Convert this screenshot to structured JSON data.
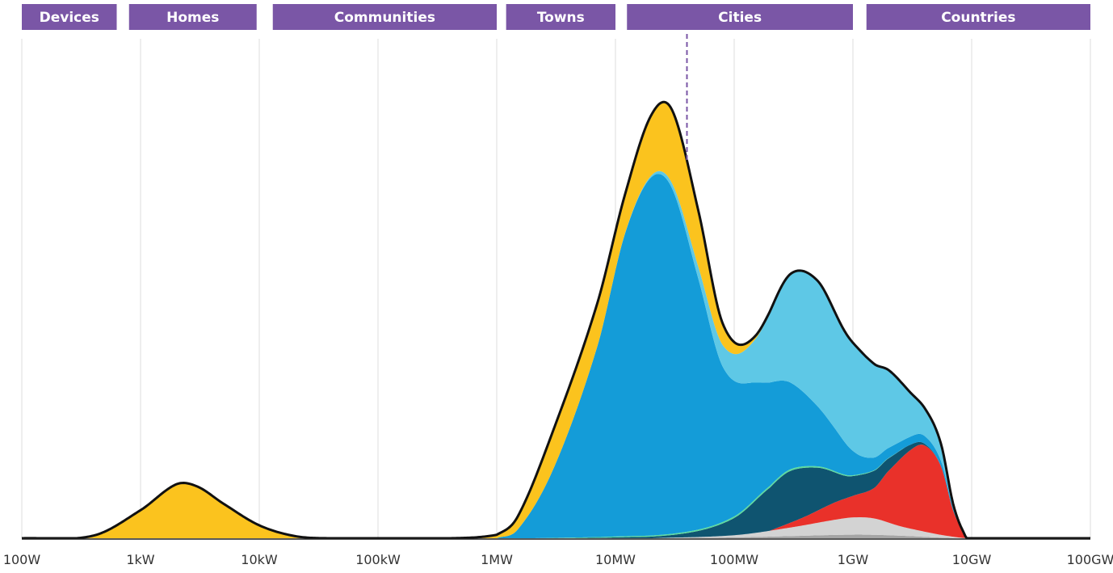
{
  "chart_data": {
    "type": "area",
    "x_scale": "log",
    "x_unit": "W",
    "x_ticks": [
      {
        "value": 100,
        "label": "100W"
      },
      {
        "value": 1000,
        "label": "1kW"
      },
      {
        "value": 10000,
        "label": "10kW"
      },
      {
        "value": 100000,
        "label": "100kW"
      },
      {
        "value": 1000000,
        "label": "1MW"
      },
      {
        "value": 10000000,
        "label": "10MW"
      },
      {
        "value": 100000000,
        "label": "100MW"
      },
      {
        "value": 1000000000,
        "label": "1GW"
      },
      {
        "value": 10000000000,
        "label": "10GW"
      },
      {
        "value": 100000000000,
        "label": "100GW"
      }
    ],
    "xlim": [
      100,
      100000000000
    ],
    "ylim": [
      0,
      1
    ],
    "grid": "vertical",
    "y_axis_shown": false,
    "categories": [
      {
        "label": "Devices",
        "from": 100,
        "to": 630
      },
      {
        "label": "Homes",
        "from": 800,
        "to": 9500
      },
      {
        "label": "Communities",
        "from": 13000,
        "to": 1000000
      },
      {
        "label": "Towns",
        "from": 1200000,
        "to": 10000000
      },
      {
        "label": "Cities",
        "from": 12500000,
        "to": 1000000000
      },
      {
        "label": "Countries",
        "from": 1300000000,
        "to": 100000000000
      }
    ],
    "marker_line": {
      "x": 40000000,
      "style": "dashed",
      "color": "#7a56a6"
    },
    "outline_color": "#111111",
    "category_band_color": "#7a56a6",
    "series": [
      {
        "color": "#a5a5a5",
        "points": [
          [
            20000000,
            0
          ],
          [
            100000000,
            0.002
          ],
          [
            300000000,
            0.005
          ],
          [
            800000000,
            0.008
          ],
          [
            1500000000,
            0.008
          ],
          [
            3000000000,
            0.005
          ],
          [
            5000000000,
            0.002
          ],
          [
            8000000000,
            0
          ]
        ]
      },
      {
        "color": "#d3d3d3",
        "points": [
          [
            20000000,
            0
          ],
          [
            100000000,
            0.005
          ],
          [
            300000000,
            0.02
          ],
          [
            700000000,
            0.035
          ],
          [
            1000000000,
            0.04
          ],
          [
            1500000000,
            0.038
          ],
          [
            2500000000,
            0.022
          ],
          [
            4000000000,
            0.012
          ],
          [
            6000000000,
            0.005
          ],
          [
            9000000000,
            0
          ]
        ]
      },
      {
        "color": "#e9312a",
        "points": [
          [
            200000000,
            0
          ],
          [
            400000000,
            0.02
          ],
          [
            700000000,
            0.04
          ],
          [
            1000000000,
            0.05
          ],
          [
            1500000000,
            0.07
          ],
          [
            2000000000,
            0.12
          ],
          [
            3000000000,
            0.18
          ],
          [
            4000000000,
            0.2
          ],
          [
            5500000000,
            0.16
          ],
          [
            7000000000,
            0.06
          ],
          [
            9000000000,
            0
          ]
        ]
      },
      {
        "color": "#0f5470",
        "points": [
          [
            2000000,
            0
          ],
          [
            10000000,
            0.002
          ],
          [
            40000000,
            0.01
          ],
          [
            100000000,
            0.04
          ],
          [
            200000000,
            0.1
          ],
          [
            300000000,
            0.12
          ],
          [
            500000000,
            0.1
          ],
          [
            900000000,
            0.05
          ],
          [
            1500000000,
            0.04
          ],
          [
            2500000000,
            0.02
          ],
          [
            4000000000,
            0.004
          ],
          [
            5500000000,
            0
          ]
        ]
      },
      {
        "color": "#5bdc9c",
        "points": [
          [
            2000000,
            0
          ],
          [
            10000000,
            0.002
          ],
          [
            50000000,
            0.003
          ],
          [
            200000000,
            0.004
          ],
          [
            600000000,
            0.003
          ],
          [
            1000000000,
            0.002
          ],
          [
            3000000000,
            0
          ]
        ]
      },
      {
        "color": "#149cd8",
        "points": [
          [
            1000000,
            0
          ],
          [
            1500000,
            0.02
          ],
          [
            3000000,
            0.16
          ],
          [
            7000000,
            0.44
          ],
          [
            12000000,
            0.7
          ],
          [
            20000000,
            0.83
          ],
          [
            30000000,
            0.8
          ],
          [
            50000000,
            0.58
          ],
          [
            80000000,
            0.36
          ],
          [
            150000000,
            0.27
          ],
          [
            300000000,
            0.2
          ],
          [
            700000000,
            0.1
          ],
          [
            1200000000,
            0.04
          ],
          [
            2500000000,
            0.02
          ],
          [
            4000000000,
            0.018
          ],
          [
            6000000000,
            0.01
          ],
          [
            8000000000,
            0
          ]
        ]
      },
      {
        "color": "#5ec8e6",
        "points": [
          [
            10000000,
            0
          ],
          [
            20000000,
            0.004
          ],
          [
            40000000,
            0.02
          ],
          [
            80000000,
            0.05
          ],
          [
            150000000,
            0.1
          ],
          [
            300000000,
            0.25
          ],
          [
            500000000,
            0.29
          ],
          [
            800000000,
            0.26
          ],
          [
            1200000000,
            0.24
          ],
          [
            2000000000,
            0.18
          ],
          [
            3500000000,
            0.08
          ],
          [
            5500000000,
            0.04
          ],
          [
            7000000000,
            0.01
          ],
          [
            9000000000,
            0
          ]
        ]
      },
      {
        "color": "#fbc31e",
        "points": [
          [
            100,
            0
          ],
          [
            400,
            0.006
          ],
          [
            1000,
            0.065
          ],
          [
            2000,
            0.125
          ],
          [
            3000,
            0.12
          ],
          [
            5000,
            0.08
          ],
          [
            10000,
            0.03
          ],
          [
            20000,
            0.005
          ],
          [
            40000,
            0
          ],
          [
            400000,
            0
          ],
          [
            1000000,
            0.008
          ],
          [
            1500000,
            0.03
          ],
          [
            3000000,
            0.09
          ],
          [
            7000000,
            0.1
          ],
          [
            12000000,
            0.09
          ],
          [
            20000000,
            0.14
          ],
          [
            30000000,
            0.17
          ],
          [
            50000000,
            0.13
          ],
          [
            80000000,
            0.05
          ],
          [
            130000000,
            0.012
          ],
          [
            250000000,
            0.004
          ],
          [
            700000000,
            0
          ],
          [
            1000000000,
            0
          ]
        ]
      }
    ]
  }
}
